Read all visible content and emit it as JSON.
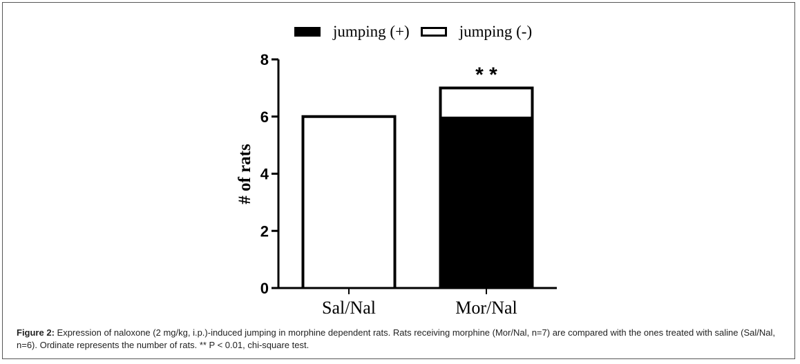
{
  "chart_data": {
    "type": "bar",
    "stacked": true,
    "categories": [
      "Sal/Nal",
      "Mor/Nal"
    ],
    "series": [
      {
        "name": "jumping (+)",
        "values": [
          0,
          6
        ],
        "color": "#000000"
      },
      {
        "name": "jumping (-)",
        "values": [
          6,
          1
        ],
        "color": "#ffffff"
      }
    ],
    "ylabel": "# of rats",
    "xlabel": "",
    "ylim": [
      0,
      8
    ],
    "yticks": [
      "0",
      "2",
      "4",
      "6",
      "8"
    ],
    "annotations": [
      {
        "category": "Mor/Nal",
        "text": "* *"
      }
    ],
    "legend_position": "top-center",
    "grid": false
  },
  "caption": {
    "label": "Figure 2:",
    "text": " Expression of naloxone (2 mg/kg, i.p.)-induced jumping in morphine dependent rats. Rats receiving morphine (Mor/Nal, n=7) are compared with the ones treated with saline (Sal/Nal, n=6). Ordinate represents the number of rats. ** P < 0.01, chi-square test."
  }
}
